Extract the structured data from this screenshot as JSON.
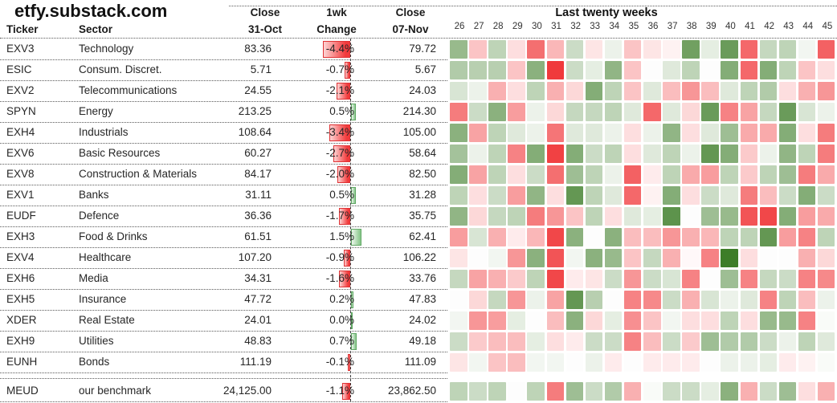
{
  "site_title": "etfy.substack.com",
  "table": {
    "header": {
      "ticker": "Ticker",
      "sector": "Sector",
      "close1": [
        "Close",
        "31-Oct"
      ],
      "change": [
        "1wk",
        "Change"
      ],
      "close2": [
        "Close",
        "07-Nov"
      ]
    },
    "rows": [
      {
        "ticker": "EXV3",
        "sector": "Technology",
        "close_31oct": "83.36",
        "change_label": "-4.4%",
        "change_value": -4.4,
        "close_07nov": "79.72"
      },
      {
        "ticker": "ESIC",
        "sector": "Consum. Discret.",
        "close_31oct": "5.71",
        "change_label": "-0.7%",
        "change_value": -0.7,
        "close_07nov": "5.67"
      },
      {
        "ticker": "EXV2",
        "sector": "Telecommunications",
        "close_31oct": "24.55",
        "change_label": "-2.1%",
        "change_value": -2.1,
        "close_07nov": "24.03"
      },
      {
        "ticker": "SPYN",
        "sector": "Energy",
        "close_31oct": "213.25",
        "change_label": "0.5%",
        "change_value": 0.5,
        "close_07nov": "214.30"
      },
      {
        "ticker": "EXH4",
        "sector": "Industrials",
        "close_31oct": "108.64",
        "change_label": "-3.4%",
        "change_value": -3.4,
        "close_07nov": "105.00"
      },
      {
        "ticker": "EXV6",
        "sector": "Basic Resources",
        "close_31oct": "60.27",
        "change_label": "-2.7%",
        "change_value": -2.7,
        "close_07nov": "58.64"
      },
      {
        "ticker": "EXV8",
        "sector": "Construction & Materials",
        "close_31oct": "84.17",
        "change_label": "-2.0%",
        "change_value": -2.0,
        "close_07nov": "82.50"
      },
      {
        "ticker": "EXV1",
        "sector": "Banks",
        "close_31oct": "31.11",
        "change_label": "0.5%",
        "change_value": 0.5,
        "close_07nov": "31.28"
      },
      {
        "ticker": "EUDF",
        "sector": "Defence",
        "close_31oct": "36.36",
        "change_label": "-1.7%",
        "change_value": -1.7,
        "close_07nov": "35.75"
      },
      {
        "ticker": "EXH3",
        "sector": "Food & Drinks",
        "close_31oct": "61.51",
        "change_label": "1.5%",
        "change_value": 1.5,
        "close_07nov": "62.41"
      },
      {
        "ticker": "EXV4",
        "sector": "Healthcare",
        "close_31oct": "107.20",
        "change_label": "-0.9%",
        "change_value": -0.9,
        "close_07nov": "106.22"
      },
      {
        "ticker": "EXH6",
        "sector": "Media",
        "close_31oct": "34.31",
        "change_label": "-1.6%",
        "change_value": -1.6,
        "close_07nov": "33.76"
      },
      {
        "ticker": "EXH5",
        "sector": "Insurance",
        "close_31oct": "47.72",
        "change_label": "0.2%",
        "change_value": 0.2,
        "close_07nov": "47.83"
      },
      {
        "ticker": "XDER",
        "sector": "Real Estate",
        "close_31oct": "24.01",
        "change_label": "0.0%",
        "change_value": 0.0,
        "close_07nov": "24.02"
      },
      {
        "ticker": "EXH9",
        "sector": "Utilities",
        "close_31oct": "48.83",
        "change_label": "0.7%",
        "change_value": 0.7,
        "close_07nov": "49.18"
      },
      {
        "ticker": "EUNH",
        "sector": "Bonds",
        "close_31oct": "111.19",
        "change_label": "-0.1%",
        "change_value": -0.1,
        "close_07nov": "111.09"
      },
      {
        "ticker": "MEUD",
        "sector": "our benchmark",
        "close_31oct": "24,125.00",
        "change_label": "-1.1%",
        "change_value": -1.1,
        "close_07nov": "23,862.50",
        "is_benchmark": true
      }
    ]
  },
  "chart_data": {
    "type": "heatmap",
    "title": "Last twenty weeks",
    "columns": [
      26,
      27,
      28,
      29,
      30,
      31,
      32,
      33,
      34,
      35,
      36,
      37,
      38,
      39,
      40,
      41,
      42,
      43,
      44,
      45
    ],
    "row_labels": [
      "EXV3",
      "ESIC",
      "EXV2",
      "SPYN",
      "EXH4",
      "EXV6",
      "EXV8",
      "EXV1",
      "EUDF",
      "EXH3",
      "EXV4",
      "EXH6",
      "EXH5",
      "XDER",
      "EXH9",
      "EUNH",
      "MEUD"
    ],
    "values": [
      [
        1.6,
        -0.9,
        1.0,
        -0.5,
        -2.2,
        -1.1,
        0.8,
        -0.4,
        0.3,
        -0.9,
        -0.4,
        -0.2,
        2.2,
        0.4,
        2.3,
        -2.3,
        0.9,
        1.0,
        0.2,
        -2.4
      ],
      [
        1.2,
        1.1,
        1.1,
        -0.9,
        1.8,
        -3.0,
        0.8,
        0.4,
        1.7,
        -0.9,
        0.0,
        0.5,
        1.0,
        0.0,
        1.9,
        -2.3,
        1.9,
        1.0,
        -0.9,
        -0.5
      ],
      [
        0.6,
        0.3,
        -1.2,
        -0.5,
        1.0,
        -1.2,
        -0.6,
        1.9,
        1.0,
        -0.9,
        0.5,
        -1.0,
        -1.6,
        -1.0,
        0.5,
        1.0,
        1.2,
        -0.5,
        -1.2,
        -1.6
      ],
      [
        -2.0,
        0.8,
        1.8,
        -1.5,
        0.3,
        -0.6,
        0.9,
        0.9,
        1.0,
        0.5,
        -2.3,
        0.5,
        -0.6,
        2.3,
        -1.9,
        -1.4,
        0.9,
        2.3,
        0.6,
        0.3
      ],
      [
        1.8,
        -1.4,
        1.0,
        0.5,
        0.3,
        -2.1,
        0.5,
        0.5,
        0.3,
        -0.5,
        0.3,
        1.7,
        -0.5,
        0.5,
        1.5,
        -1.3,
        -1.3,
        1.9,
        -0.5,
        -2.0
      ],
      [
        1.4,
        0.3,
        1.0,
        -1.9,
        1.9,
        -2.9,
        1.9,
        0.8,
        1.0,
        -0.5,
        0.5,
        1.0,
        0.3,
        2.4,
        1.9,
        -0.8,
        0.3,
        1.7,
        1.0,
        -2.0
      ],
      [
        1.9,
        -1.4,
        1.0,
        -0.5,
        0.8,
        -2.2,
        1.5,
        1.0,
        0.3,
        -2.4,
        -0.3,
        1.0,
        -1.3,
        -1.5,
        1.0,
        -0.8,
        1.0,
        1.5,
        -2.0,
        -1.3
      ],
      [
        1.0,
        -0.5,
        0.8,
        -1.5,
        1.7,
        -0.5,
        2.4,
        1.0,
        0.5,
        -2.3,
        -0.2,
        1.9,
        -0.5,
        0.8,
        0.5,
        -2.0,
        -1.0,
        0.8,
        1.9,
        0.8
      ],
      [
        1.7,
        -0.6,
        0.9,
        1.0,
        -2.0,
        -1.6,
        -0.9,
        1.0,
        -0.5,
        0.5,
        0.4,
        2.5,
        0.0,
        1.5,
        1.6,
        -2.6,
        -2.8,
        1.9,
        -1.5,
        -1.3
      ],
      [
        -1.5,
        0.6,
        -1.2,
        -0.3,
        -1.1,
        -2.8,
        1.8,
        0.0,
        1.8,
        -1.0,
        -1.0,
        -1.6,
        -1.2,
        -1.1,
        1.0,
        1.0,
        2.4,
        -1.5,
        -1.9,
        1.0
      ],
      [
        -0.4,
        0.0,
        0.2,
        -1.6,
        1.8,
        -2.6,
        0.2,
        1.8,
        1.6,
        -0.9,
        0.9,
        -1.2,
        -0.1,
        -1.9,
        3.0,
        -0.5,
        0.0,
        0.0,
        -1.2,
        -0.6
      ],
      [
        0.9,
        -1.4,
        -1.2,
        -0.8,
        1.0,
        -2.8,
        -0.3,
        -0.4,
        0.8,
        -1.6,
        0.8,
        0.6,
        -1.9,
        0.0,
        1.5,
        -1.9,
        0.9,
        0.8,
        -1.9,
        -1.8
      ],
      [
        0.0,
        -0.6,
        0.9,
        -1.6,
        0.3,
        -1.4,
        2.4,
        1.1,
        0.0,
        -1.9,
        -1.8,
        0.8,
        -1.2,
        0.6,
        0.3,
        0.5,
        -1.9,
        1.0,
        -1.0,
        0.3
      ],
      [
        0.2,
        -1.6,
        -1.5,
        0.4,
        0.0,
        -1.0,
        1.8,
        -0.6,
        0.4,
        -1.7,
        -0.9,
        0.2,
        -0.5,
        -0.5,
        1.0,
        -0.5,
        1.6,
        1.6,
        -1.9,
        0.1
      ],
      [
        0.8,
        -0.8,
        -1.0,
        -1.0,
        0.4,
        -0.5,
        -0.3,
        0.8,
        0.8,
        -1.9,
        -1.0,
        0.8,
        -0.8,
        1.5,
        1.2,
        1.2,
        0.8,
        0.3,
        1.0,
        0.5
      ],
      [
        -0.4,
        0.2,
        -0.9,
        -1.0,
        0.2,
        0.2,
        0.0,
        0.3,
        -0.3,
        0.0,
        -0.3,
        -0.3,
        -0.3,
        0.0,
        0.3,
        0.3,
        0.4,
        -0.3,
        -0.2,
        0.1
      ],
      [
        1.0,
        0.8,
        1.0,
        0.0,
        1.0,
        -2.0,
        1.5,
        0.8,
        1.2,
        -1.2,
        0.1,
        0.8,
        0.8,
        0.4,
        1.8,
        -1.2,
        0.8,
        1.5,
        -0.5,
        -1.2
      ]
    ],
    "colorscale": {
      "negative_max": "#f03a3c",
      "zero": "#ffffff",
      "positive_max": "#3d7d28",
      "range": [
        -3,
        3
      ]
    },
    "legend_position": "none",
    "grid": false
  },
  "colors": {
    "bar_negative_border": "#df3335",
    "bar_positive_border": "#61a865",
    "axis_dash": "#3a3a3a",
    "text": "#262626"
  }
}
